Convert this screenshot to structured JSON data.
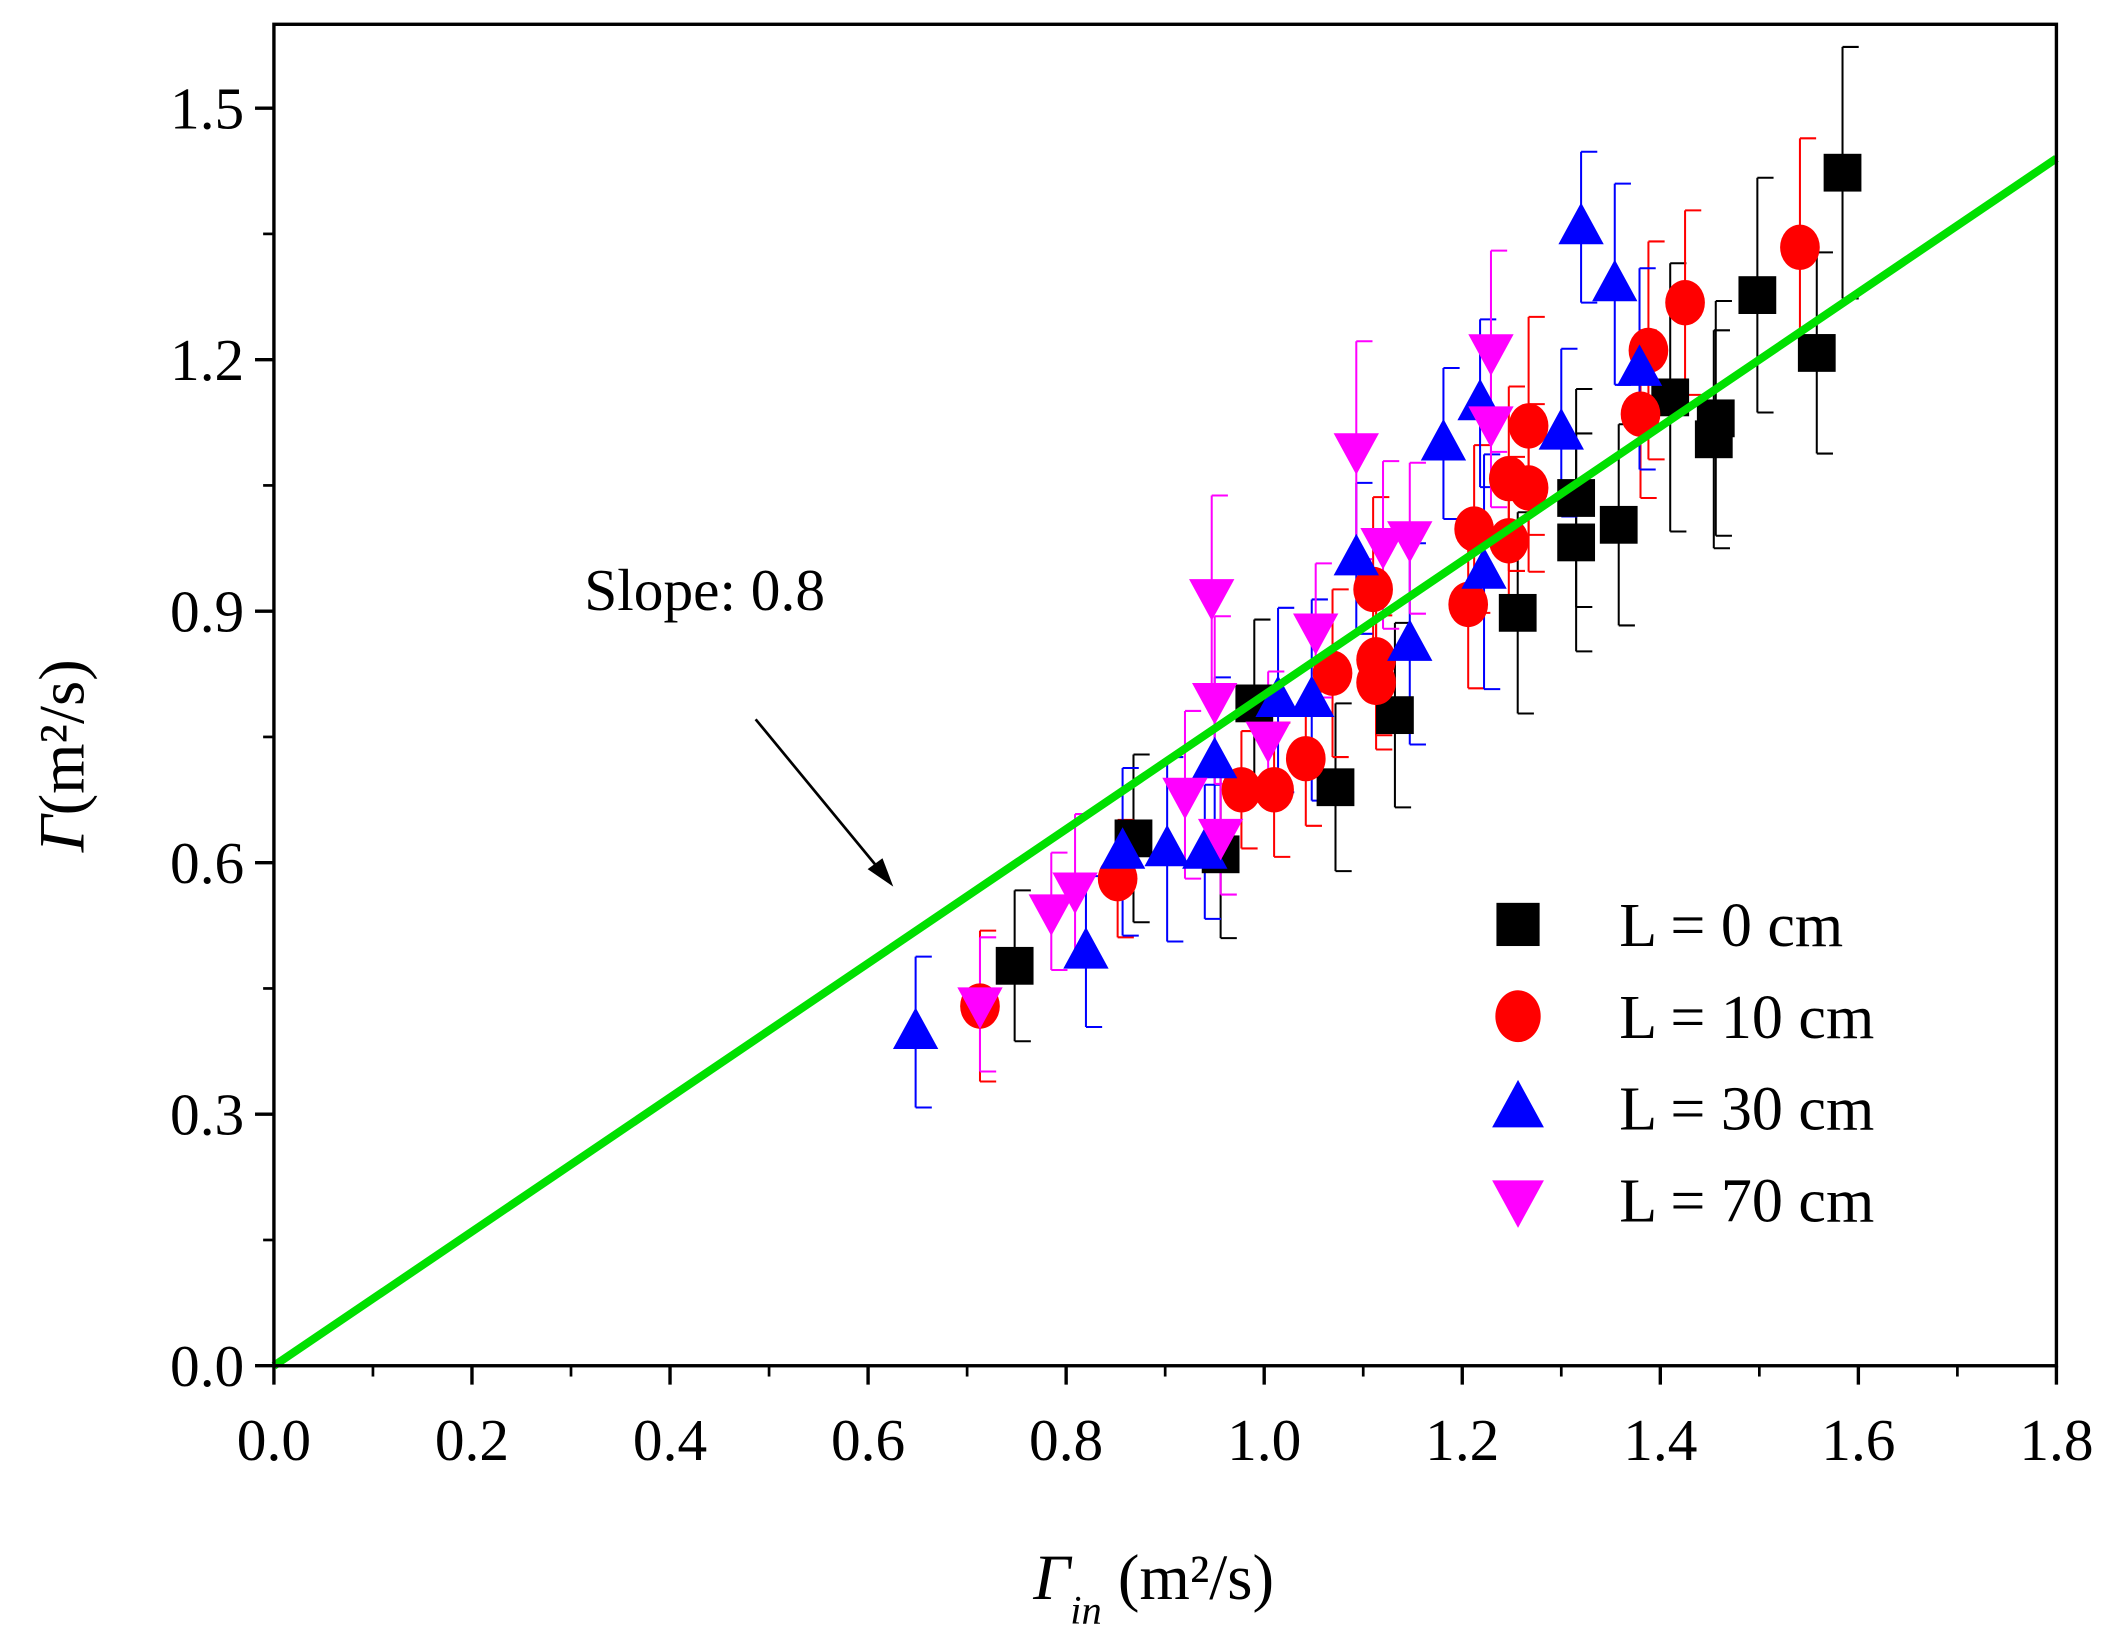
{
  "chart_data": {
    "type": "scatter",
    "title": "",
    "xlabel": {
      "symbol": "Γ",
      "subscript": "in",
      "unit": " (m²/s)"
    },
    "ylabel": {
      "symbol": "Γ",
      "unit": "(m²/s)"
    },
    "xlim": [
      0,
      1.8
    ],
    "ylim": [
      0,
      1.6
    ],
    "xticks": [
      "0.0",
      "0.2",
      "0.4",
      "0.6",
      "0.8",
      "1.0",
      "1.2",
      "1.4",
      "1.6",
      "1.8"
    ],
    "yticks": [
      "0.0",
      "0.3",
      "0.6",
      "0.9",
      "1.2",
      "1.5"
    ],
    "grid": false,
    "legend_position": "bottom-right",
    "annotation": "Slope: 0.8",
    "fit_line": {
      "slope": 0.8,
      "x": [
        0,
        1.8
      ],
      "color": "#00e000"
    },
    "series": [
      {
        "name": "L = 0 cm",
        "marker": "square",
        "color": "#000000",
        "x": [
          0.748,
          0.868,
          0.956,
          0.99,
          1.072,
          1.132,
          1.256,
          1.315,
          1.315,
          1.358,
          1.41,
          1.454,
          1.456,
          1.498,
          1.558,
          1.584
        ],
        "y": [
          0.477,
          0.629,
          0.61,
          0.79,
          0.69,
          0.776,
          0.898,
          0.982,
          1.035,
          1.003,
          1.155,
          1.105,
          1.13,
          1.277,
          1.208,
          1.423
        ],
        "err": [
          0.09,
          0.1,
          0.1,
          0.1,
          0.1,
          0.11,
          0.12,
          0.13,
          0.13,
          0.12,
          0.16,
          0.13,
          0.14,
          0.14,
          0.12,
          0.15
        ]
      },
      {
        "name": "L = 10 cm",
        "marker": "circle",
        "color": "#ff0000",
        "x": [
          0.713,
          0.852,
          0.977,
          1.01,
          1.042,
          1.069,
          1.11,
          1.113,
          1.113,
          1.206,
          1.212,
          1.247,
          1.247,
          1.267,
          1.267,
          1.38,
          1.388,
          1.425,
          1.541
        ],
        "y": [
          0.429,
          0.581,
          0.687,
          0.687,
          0.724,
          0.826,
          0.926,
          0.842,
          0.815,
          0.908,
          0.998,
          0.984,
          1.058,
          1.047,
          1.121,
          1.135,
          1.211,
          1.268,
          1.334
        ],
        "err": [
          0.09,
          0.07,
          0.07,
          0.08,
          0.08,
          0.1,
          0.11,
          0.09,
          0.08,
          0.1,
          0.1,
          0.1,
          0.11,
          0.1,
          0.13,
          0.1,
          0.13,
          0.11,
          0.13
        ]
      },
      {
        "name": "L = 30 cm",
        "marker": "triangle-up",
        "color": "#0000ff",
        "x": [
          0.648,
          0.82,
          0.857,
          0.902,
          0.94,
          0.95,
          1.014,
          1.048,
          1.093,
          1.147,
          1.181,
          1.218,
          1.222,
          1.3,
          1.32,
          1.354,
          1.379
        ],
        "y": [
          0.398,
          0.494,
          0.613,
          0.616,
          0.613,
          0.721,
          0.794,
          0.794,
          0.963,
          0.861,
          1.1,
          1.148,
          0.947,
          1.113,
          1.358,
          1.29,
          1.189
        ],
        "err": [
          0.09,
          0.09,
          0.1,
          0.11,
          0.08,
          0.1,
          0.11,
          0.12,
          0.09,
          0.12,
          0.09,
          0.1,
          0.14,
          0.1,
          0.09,
          0.12,
          0.12
        ]
      },
      {
        "name": "L = 70 cm",
        "marker": "triangle-down",
        "color": "#ff00ff",
        "x": [
          0.713,
          0.785,
          0.809,
          0.92,
          0.947,
          0.95,
          0.956,
          1.004,
          1.052,
          1.093,
          1.12,
          1.147,
          1.229,
          1.229
        ],
        "y": [
          0.431,
          0.542,
          0.568,
          0.681,
          0.918,
          0.794,
          0.632,
          0.748,
          0.877,
          1.092,
          0.979,
          0.987,
          1.124,
          1.21
        ],
        "err": [
          0.08,
          0.07,
          0.09,
          0.1,
          0.12,
          0.1,
          0.07,
          0.08,
          0.08,
          0.13,
          0.1,
          0.09,
          0.1,
          0.12
        ]
      }
    ]
  }
}
